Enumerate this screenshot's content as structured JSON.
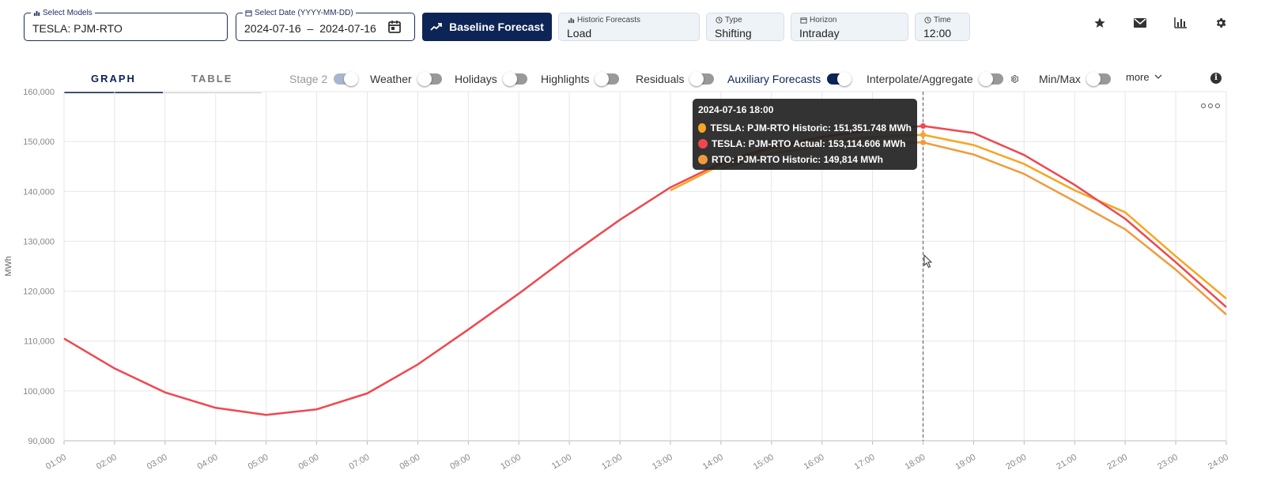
{
  "header": {
    "models": {
      "label": "Select Models",
      "value": "TESLA: PJM-RTO"
    },
    "date": {
      "label": "Select Date (YYYY-MM-DD)",
      "start": "2024-07-16",
      "separator": "–",
      "end": "2024-07-16"
    },
    "baseline_button": "Baseline Forecast",
    "historic": {
      "label": "Historic Forecasts",
      "value": "Load"
    },
    "type": {
      "label": "Type",
      "value": "Shifting"
    },
    "horizon": {
      "label": "Horizon",
      "value": "Intraday"
    },
    "time": {
      "label": "Time",
      "value": "12:00"
    },
    "icons": [
      "star-icon",
      "mail-icon",
      "bar-chart-icon",
      "gear-icon"
    ]
  },
  "tabs": [
    {
      "label": "GRAPH",
      "active": true
    },
    {
      "label": "TABLE",
      "active": false
    }
  ],
  "toggles": [
    {
      "label": "Stage 2",
      "state": "disabled-on"
    },
    {
      "label": "Weather",
      "state": "off"
    },
    {
      "label": "Holidays",
      "state": "off"
    },
    {
      "label": "Highlights",
      "state": "off"
    },
    {
      "label": "Residuals",
      "state": "off"
    },
    {
      "label": "Auxiliary Forecasts",
      "state": "on"
    },
    {
      "label": "Interpolate/Aggregate",
      "state": "off"
    },
    {
      "label": "Min/Max",
      "state": "off"
    }
  ],
  "more_label": "more",
  "tooltip": {
    "title": "2024-07-16 18:00",
    "rows": [
      {
        "text": "TESLA: PJM-RTO Historic: 151,351.748 MWh",
        "color": "#f5a623"
      },
      {
        "text": "TESLA: PJM-RTO Actual: 153,114.606 MWh",
        "color": "#f0474f"
      },
      {
        "text": "RTO: PJM-RTO Historic: 149,814 MWh",
        "color": "#f09a3e"
      }
    ]
  },
  "chart_data": {
    "type": "line",
    "ylabel": "MWh",
    "ylim": [
      90000,
      160000
    ],
    "yticks": [
      "90,000",
      "100,000",
      "110,000",
      "120,000",
      "130,000",
      "140,000",
      "150,000",
      "160,000"
    ],
    "x": [
      "01:00",
      "02:00",
      "03:00",
      "04:00",
      "05:00",
      "06:00",
      "07:00",
      "08:00",
      "09:00",
      "10:00",
      "11:00",
      "12:00",
      "13:00",
      "14:00",
      "15:00",
      "16:00",
      "17:00",
      "18:00",
      "19:00",
      "20:00",
      "21:00",
      "22:00",
      "23:00",
      "24:00"
    ],
    "grid": true,
    "crosshair_x": "18:00",
    "series": [
      {
        "name": "TESLA: PJM-RTO Actual",
        "color": "#f0474f",
        "values": [
          110500,
          104500,
          99700,
          96600,
          95200,
          96300,
          99500,
          105300,
          112300,
          119500,
          127100,
          134300,
          140800,
          145700,
          148900,
          150900,
          152300,
          153115,
          151700,
          147300,
          141300,
          134500,
          125800,
          116800
        ]
      },
      {
        "name": "TESLA: PJM-RTO Historic",
        "color": "#f5a623",
        "values": [
          null,
          null,
          null,
          null,
          null,
          null,
          null,
          null,
          null,
          null,
          null,
          null,
          140200,
          145300,
          148600,
          150100,
          150900,
          151352,
          149300,
          145500,
          140200,
          135800,
          127000,
          118500
        ]
      },
      {
        "name": "RTO: PJM-RTO Historic",
        "color": "#f09a3e",
        "values": [
          null,
          null,
          null,
          null,
          null,
          null,
          null,
          null,
          null,
          null,
          null,
          null,
          null,
          144500,
          147600,
          149000,
          149700,
          149814,
          147400,
          143500,
          138000,
          132400,
          124300,
          115300
        ]
      }
    ]
  }
}
